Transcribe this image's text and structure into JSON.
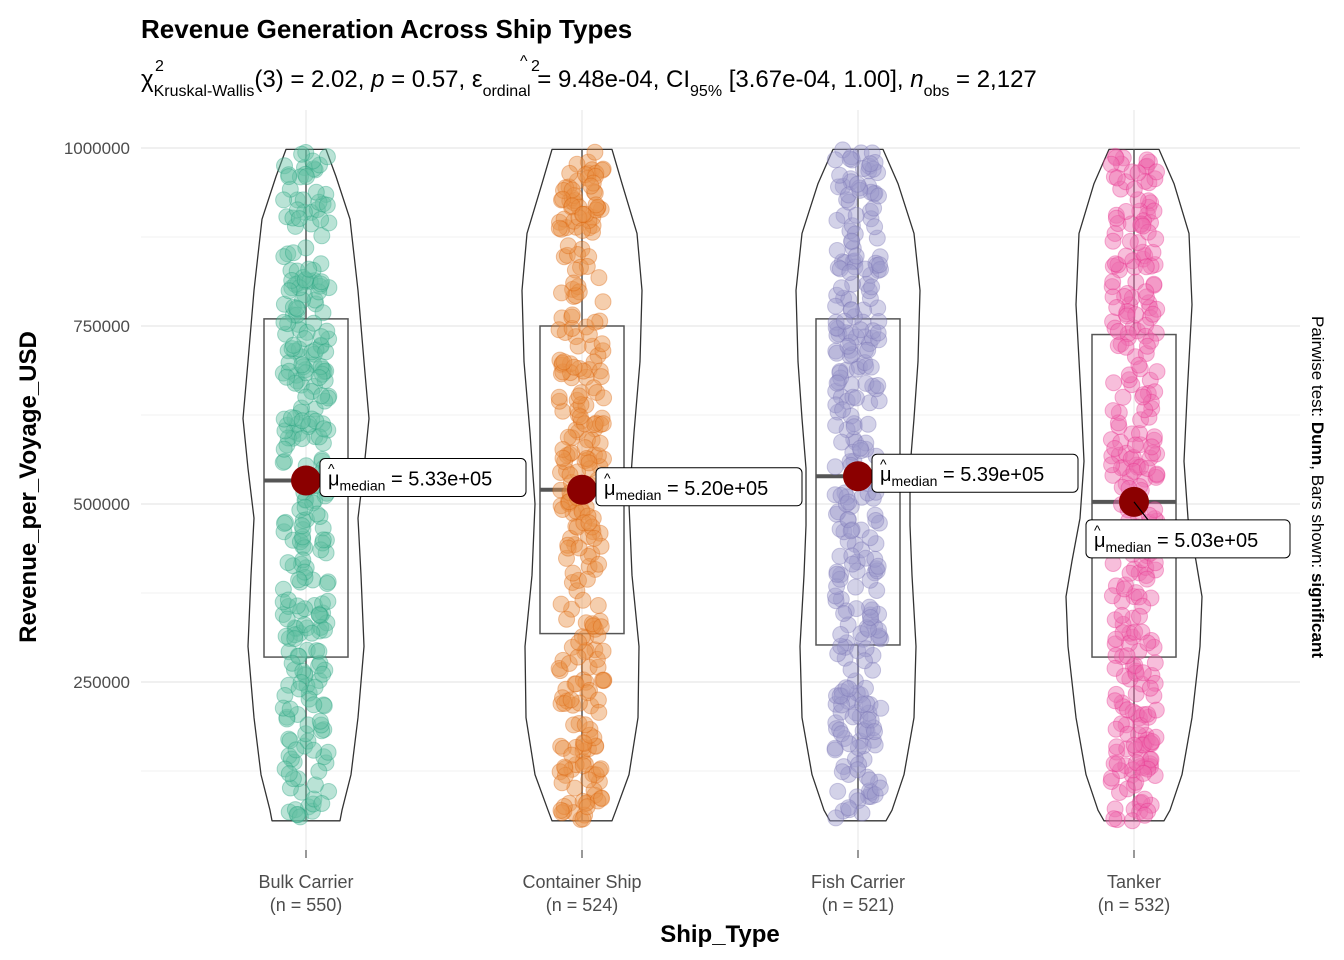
{
  "chart_data": {
    "type": "violin-box-jitter",
    "title": "Revenue Generation Across Ship Types",
    "subtitle": {
      "chi_label": "χ",
      "chi_sup": "2",
      "chi_sub": "Kruskal-Wallis",
      "df_stat": "(3) = 2.02, ",
      "p_label": "p",
      "p_val": " = 0.57, ",
      "eps_label": "ε",
      "eps_sup": "2",
      "eps_sub": "ordinal",
      "eps_val": " = 9.48e-04, CI",
      "ci_sub": "95%",
      "ci_val": " [3.67e-04, 1.00], ",
      "n_label": "n",
      "n_sub": "obs",
      "n_val": " = 2,127"
    },
    "xlabel": "Ship_Type",
    "ylabel": "Revenue_per_Voyage_USD",
    "right_caption": {
      "part1": "Pairwise test: ",
      "part2": "Dunn",
      "part3": ", Bars shown: ",
      "part4": "significant"
    },
    "ylim": [
      50000,
      1000000
    ],
    "yticks": [
      250000,
      500000,
      750000,
      1000000
    ],
    "ytick_labels": [
      "250000",
      "500000",
      "750000",
      "1000000"
    ],
    "grid": true,
    "median_label_prefix": "μ",
    "median_label_sub": "median",
    "groups": [
      {
        "name": "Bulk Carrier",
        "n_label": "(n = 550)",
        "color": "#66C2A5",
        "dark": "#1B9E77",
        "min": 55000,
        "q1": 285000,
        "median": 533000,
        "q3": 760000,
        "max": 998000,
        "median_label": "= 5.33e+05"
      },
      {
        "name": "Container Ship",
        "n_label": "(n = 524)",
        "color": "#E8924A",
        "dark": "#D95F02",
        "min": 55000,
        "q1": 318000,
        "median": 520000,
        "q3": 750000,
        "max": 998000,
        "median_label": "= 5.20e+05"
      },
      {
        "name": "Fish Carrier",
        "n_label": "(n = 521)",
        "color": "#9E9CCB",
        "dark": "#7570B3",
        "min": 55000,
        "q1": 302000,
        "median": 539000,
        "q3": 760000,
        "max": 998000,
        "median_label": "= 5.39e+05"
      },
      {
        "name": "Tanker",
        "n_label": "(n = 532)",
        "color": "#EE6FB0",
        "dark": "#E7298A",
        "min": 55000,
        "q1": 285000,
        "median": 503000,
        "q3": 738000,
        "max": 998000,
        "median_label": "= 5.03e+05"
      }
    ]
  }
}
